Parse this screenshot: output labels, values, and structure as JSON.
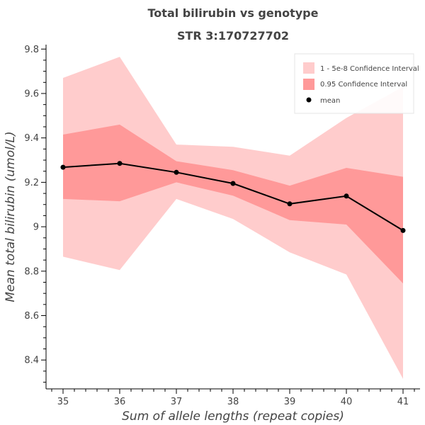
{
  "chart_data": {
    "type": "line",
    "title": "Total bilirubin vs genotype",
    "subtitle": "STR 3:170727702",
    "xlabel": "Sum of allele lengths (repeat copies)",
    "ylabel": "Mean total bilirubin (umol/L)",
    "x": [
      35,
      36,
      37,
      38,
      39,
      40,
      41
    ],
    "x_tick_labels": [
      "35",
      "36",
      "37",
      "38",
      "39",
      "40",
      "41"
    ],
    "y_ticks": [
      8.4,
      8.6,
      8.8,
      9.0,
      9.2,
      9.4,
      9.6,
      9.8
    ],
    "y_tick_labels": [
      "8.4",
      "8.6",
      "8.8",
      "9",
      "9.2",
      "9.4",
      "9.6",
      "9.8"
    ],
    "xlim": [
      34.7,
      41.3
    ],
    "ylim": [
      8.27,
      9.82
    ],
    "grid": false,
    "legend_position": "top-right",
    "series": [
      {
        "name": "1 - 5e-8 Confidence Interval",
        "kind": "band",
        "color": "#ffcccc",
        "lower": [
          8.865,
          8.805,
          9.125,
          9.035,
          8.885,
          8.785,
          8.315
        ],
        "upper": [
          9.67,
          9.765,
          9.37,
          9.36,
          9.32,
          9.49,
          9.63
        ]
      },
      {
        "name": "0.95 Confidence Interval",
        "kind": "band",
        "color": "#ff9999",
        "lower": [
          9.125,
          9.115,
          9.2,
          9.14,
          9.03,
          9.01,
          8.745
        ],
        "upper": [
          9.415,
          9.46,
          9.295,
          9.255,
          9.185,
          9.265,
          9.225
        ]
      },
      {
        "name": "mean",
        "kind": "line",
        "color": "#000000",
        "values": [
          9.268,
          9.285,
          9.245,
          9.195,
          9.103,
          9.138,
          8.983
        ]
      }
    ]
  }
}
